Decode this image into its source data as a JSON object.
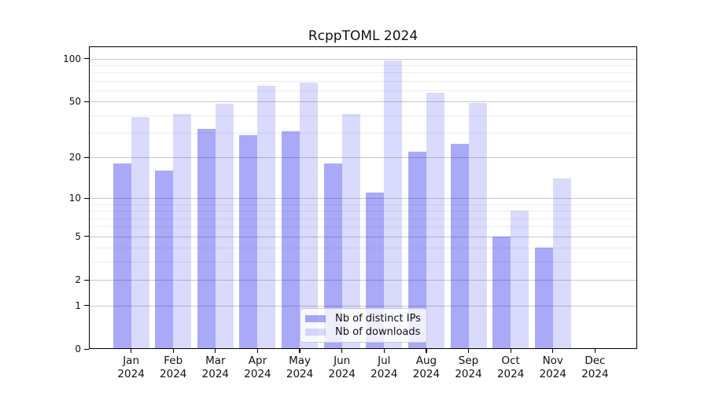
{
  "chart_data": {
    "type": "bar",
    "title": "RcppTOML 2024",
    "categories": [
      "Jan",
      "Feb",
      "Mar",
      "Apr",
      "May",
      "Jun",
      "Jul",
      "Aug",
      "Sep",
      "Oct",
      "Nov",
      "Dec"
    ],
    "category_year": "2024",
    "series": [
      {
        "name": "Nb of distinct IPs",
        "color": "rgba(10,10,235,0.35)",
        "values": [
          18,
          16,
          32,
          29,
          31,
          18,
          11,
          22,
          25,
          5,
          4,
          0
        ]
      },
      {
        "name": "Nb of downloads",
        "color": "rgba(10,10,235,0.15)",
        "values": [
          39,
          41,
          48,
          65,
          68,
          41,
          97,
          58,
          49,
          8,
          14,
          0
        ]
      }
    ],
    "xlabel": "",
    "ylabel": "",
    "yscale": "log1p",
    "ylim": [
      0,
      100
    ],
    "y_major_ticks": [
      0,
      1,
      2,
      5,
      10,
      20,
      50,
      100
    ],
    "y_minor_gridlines": [
      3,
      4,
      6,
      7,
      8,
      9,
      30,
      40,
      60,
      70,
      80,
      90
    ],
    "grid": true,
    "legend_position": "lower center"
  },
  "colors": {
    "background": "#ffffff",
    "axis": "#000000",
    "major_grid": "#c9c9c9",
    "minor_grid": "#ededed",
    "bar_distinct_ips": "rgba(10,10,235,0.35)",
    "bar_downloads": "rgba(10,10,235,0.15)"
  }
}
